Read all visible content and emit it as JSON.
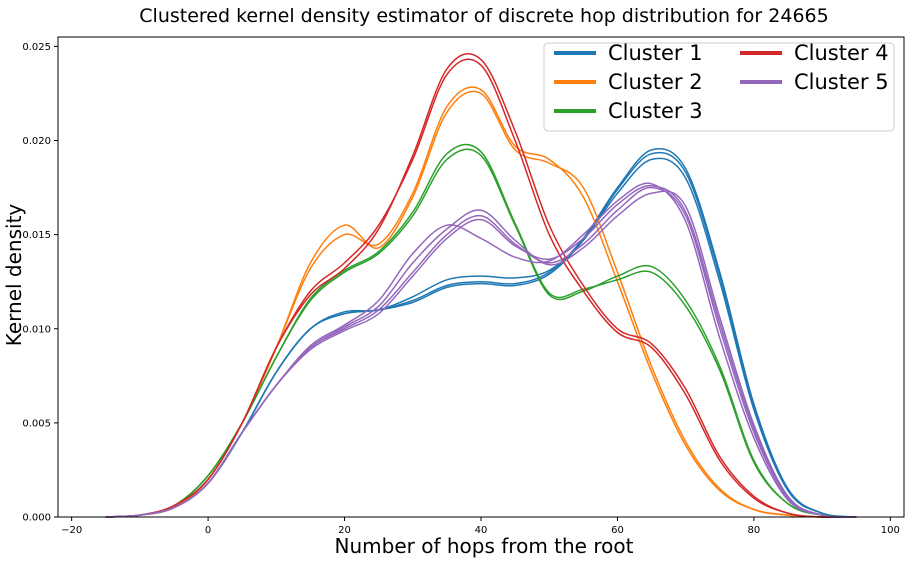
{
  "chart_data": {
    "type": "line",
    "title": "Clustered kernel density estimator of discrete hop distribution for 24665",
    "xlabel": "Number of hops from the root",
    "ylabel": "Kernel density",
    "xlim": [
      -22,
      102
    ],
    "ylim": [
      0,
      0.0255
    ],
    "xticks": [
      -20,
      0,
      20,
      40,
      60,
      80,
      100
    ],
    "yticks": [
      0.0,
      0.005,
      0.01,
      0.015,
      0.02,
      0.025
    ],
    "xtick_labels": [
      "−20",
      "0",
      "20",
      "40",
      "60",
      "80",
      "100"
    ],
    "ytick_labels": [
      "0.000",
      "0.005",
      "0.010",
      "0.015",
      "0.020",
      "0.025"
    ],
    "grid": false,
    "legend": {
      "placement": "top-right",
      "columns": 2
    },
    "series": [
      {
        "name": "Cluster 1",
        "color": "#1f77b4",
        "curves": [
          {
            "x": [
              -15,
              -10,
              -5,
              0,
              5,
              10,
              15,
              20,
              25,
              30,
              35,
              40,
              45,
              50,
              55,
              60,
              65,
              70,
              75,
              80,
              85,
              90,
              95
            ],
            "y": [
              0,
              0.0001,
              0.0005,
              0.0018,
              0.0045,
              0.0077,
              0.01,
              0.0108,
              0.011,
              0.0115,
              0.0123,
              0.0125,
              0.0124,
              0.013,
              0.0148,
              0.0175,
              0.0195,
              0.0185,
              0.013,
              0.006,
              0.0015,
              0.0002,
              0
            ]
          },
          {
            "x": [
              -15,
              -10,
              -5,
              0,
              5,
              10,
              15,
              20,
              25,
              30,
              35,
              40,
              45,
              50,
              55,
              60,
              65,
              70,
              75,
              80,
              85,
              90,
              95
            ],
            "y": [
              0,
              0.0001,
              0.0005,
              0.0018,
              0.0045,
              0.0077,
              0.01,
              0.0109,
              0.011,
              0.0117,
              0.0126,
              0.0128,
              0.0127,
              0.0131,
              0.0147,
              0.0172,
              0.019,
              0.018,
              0.0125,
              0.0057,
              0.0014,
              0.0002,
              0
            ]
          },
          {
            "x": [
              -15,
              -10,
              -5,
              0,
              5,
              10,
              15,
              20,
              25,
              30,
              35,
              40,
              45,
              50,
              55,
              60,
              65,
              70,
              75,
              80,
              85,
              90,
              95
            ],
            "y": [
              0,
              0.0001,
              0.0005,
              0.0018,
              0.0045,
              0.0077,
              0.01,
              0.0108,
              0.011,
              0.0114,
              0.0122,
              0.0124,
              0.0123,
              0.0129,
              0.0147,
              0.0174,
              0.0193,
              0.0183,
              0.0128,
              0.0058,
              0.0014,
              0.0002,
              0
            ]
          }
        ]
      },
      {
        "name": "Cluster 2",
        "color": "#ff7f0e",
        "curves": [
          {
            "x": [
              -15,
              -10,
              -5,
              0,
              5,
              10,
              15,
              20,
              25,
              30,
              35,
              40,
              45,
              50,
              55,
              60,
              65,
              70,
              75,
              80,
              85,
              90,
              95
            ],
            "y": [
              0,
              0.0001,
              0.0005,
              0.002,
              0.005,
              0.009,
              0.0135,
              0.0155,
              0.0143,
              0.017,
              0.0215,
              0.0225,
              0.0195,
              0.0188,
              0.0175,
              0.013,
              0.008,
              0.004,
              0.0015,
              0.0004,
              0.0001,
              0,
              0
            ]
          },
          {
            "x": [
              -15,
              -10,
              -5,
              0,
              5,
              10,
              15,
              20,
              25,
              30,
              35,
              40,
              45,
              50,
              55,
              60,
              65,
              70,
              75,
              80,
              85,
              90,
              95
            ],
            "y": [
              0,
              0.0001,
              0.0005,
              0.002,
              0.005,
              0.009,
              0.0132,
              0.015,
              0.0145,
              0.0172,
              0.0218,
              0.0227,
              0.0197,
              0.019,
              0.017,
              0.0125,
              0.0077,
              0.0038,
              0.0014,
              0.0004,
              0.0001,
              0,
              0
            ]
          }
        ]
      },
      {
        "name": "Cluster 3",
        "color": "#2ca02c",
        "curves": [
          {
            "x": [
              -15,
              -10,
              -5,
              0,
              5,
              10,
              15,
              20,
              25,
              30,
              35,
              40,
              45,
              50,
              55,
              60,
              65,
              70,
              75,
              80,
              85,
              90,
              95
            ],
            "y": [
              0,
              0.0001,
              0.0006,
              0.0022,
              0.005,
              0.0085,
              0.0115,
              0.013,
              0.014,
              0.016,
              0.019,
              0.0192,
              0.0155,
              0.0118,
              0.012,
              0.0128,
              0.0133,
              0.0115,
              0.008,
              0.003,
              0.0007,
              0.0001,
              0
            ]
          },
          {
            "x": [
              -15,
              -10,
              -5,
              0,
              5,
              10,
              15,
              20,
              25,
              30,
              35,
              40,
              45,
              50,
              55,
              60,
              65,
              70,
              75,
              80,
              85,
              90,
              95
            ],
            "y": [
              0,
              0.0001,
              0.0006,
              0.0022,
              0.005,
              0.0085,
              0.0116,
              0.0131,
              0.0141,
              0.0162,
              0.0193,
              0.0194,
              0.0156,
              0.0119,
              0.0121,
              0.0126,
              0.013,
              0.0112,
              0.0078,
              0.0029,
              0.0007,
              0.0001,
              0
            ]
          }
        ]
      },
      {
        "name": "Cluster 4",
        "color": "#d62728",
        "curves": [
          {
            "x": [
              -15,
              -10,
              -5,
              0,
              5,
              10,
              15,
              20,
              25,
              30,
              35,
              40,
              45,
              50,
              55,
              60,
              65,
              70,
              75,
              80,
              85,
              90,
              95
            ],
            "y": [
              0,
              0.0001,
              0.0006,
              0.002,
              0.005,
              0.009,
              0.012,
              0.0135,
              0.0155,
              0.019,
              0.0235,
              0.024,
              0.02,
              0.015,
              0.012,
              0.0098,
              0.009,
              0.0065,
              0.003,
              0.001,
              0.0002,
              0,
              0
            ]
          },
          {
            "x": [
              -15,
              -10,
              -5,
              0,
              5,
              10,
              15,
              20,
              25,
              30,
              35,
              40,
              45,
              50,
              55,
              60,
              65,
              70,
              75,
              80,
              85,
              90,
              95
            ],
            "y": [
              0,
              0.0001,
              0.0006,
              0.002,
              0.005,
              0.009,
              0.0118,
              0.0132,
              0.0153,
              0.0192,
              0.0238,
              0.0243,
              0.0205,
              0.0155,
              0.0123,
              0.01,
              0.0092,
              0.0068,
              0.0032,
              0.0011,
              0.0002,
              0,
              0
            ]
          }
        ]
      },
      {
        "name": "Cluster 5",
        "color": "#9467bd",
        "curves": [
          {
            "x": [
              -15,
              -10,
              -5,
              0,
              5,
              10,
              15,
              20,
              25,
              30,
              35,
              40,
              45,
              50,
              55,
              60,
              65,
              70,
              75,
              80,
              85,
              90,
              95
            ],
            "y": [
              0,
              0.0001,
              0.0005,
              0.0018,
              0.0045,
              0.007,
              0.009,
              0.01,
              0.011,
              0.013,
              0.015,
              0.016,
              0.0145,
              0.0135,
              0.0145,
              0.0163,
              0.0175,
              0.016,
              0.01,
              0.0045,
              0.001,
              0.0001,
              0
            ]
          },
          {
            "x": [
              -15,
              -10,
              -5,
              0,
              5,
              10,
              15,
              20,
              25,
              30,
              35,
              40,
              45,
              50,
              55,
              60,
              65,
              70,
              75,
              80,
              85,
              90,
              95
            ],
            "y": [
              0,
              0.0001,
              0.0005,
              0.0018,
              0.0045,
              0.007,
              0.0091,
              0.0102,
              0.0115,
              0.014,
              0.0155,
              0.0148,
              0.0138,
              0.0136,
              0.015,
              0.0168,
              0.0177,
              0.0157,
              0.0095,
              0.0042,
              0.0009,
              0.0001,
              0
            ]
          },
          {
            "x": [
              -15,
              -10,
              -5,
              0,
              5,
              10,
              15,
              20,
              25,
              30,
              35,
              40,
              45,
              50,
              55,
              60,
              65,
              70,
              75,
              80,
              85,
              90,
              95
            ],
            "y": [
              0,
              0.0001,
              0.0005,
              0.0018,
              0.0045,
              0.007,
              0.009,
              0.0101,
              0.0112,
              0.0135,
              0.0153,
              0.0163,
              0.0147,
              0.0134,
              0.0143,
              0.016,
              0.0172,
              0.0165,
              0.0106,
              0.0049,
              0.0011,
              0.0001,
              0
            ]
          },
          {
            "x": [
              -15,
              -10,
              -5,
              0,
              5,
              10,
              15,
              20,
              25,
              30,
              35,
              40,
              45,
              50,
              55,
              60,
              65,
              70,
              75,
              80,
              85,
              90,
              95
            ],
            "y": [
              0,
              0.0001,
              0.0005,
              0.0018,
              0.0045,
              0.007,
              0.0089,
              0.0099,
              0.0108,
              0.0128,
              0.0148,
              0.0158,
              0.0144,
              0.0137,
              0.0148,
              0.0166,
              0.0176,
              0.0162,
              0.0103,
              0.0047,
              0.001,
              0.0001,
              0
            ]
          }
        ]
      }
    ]
  }
}
